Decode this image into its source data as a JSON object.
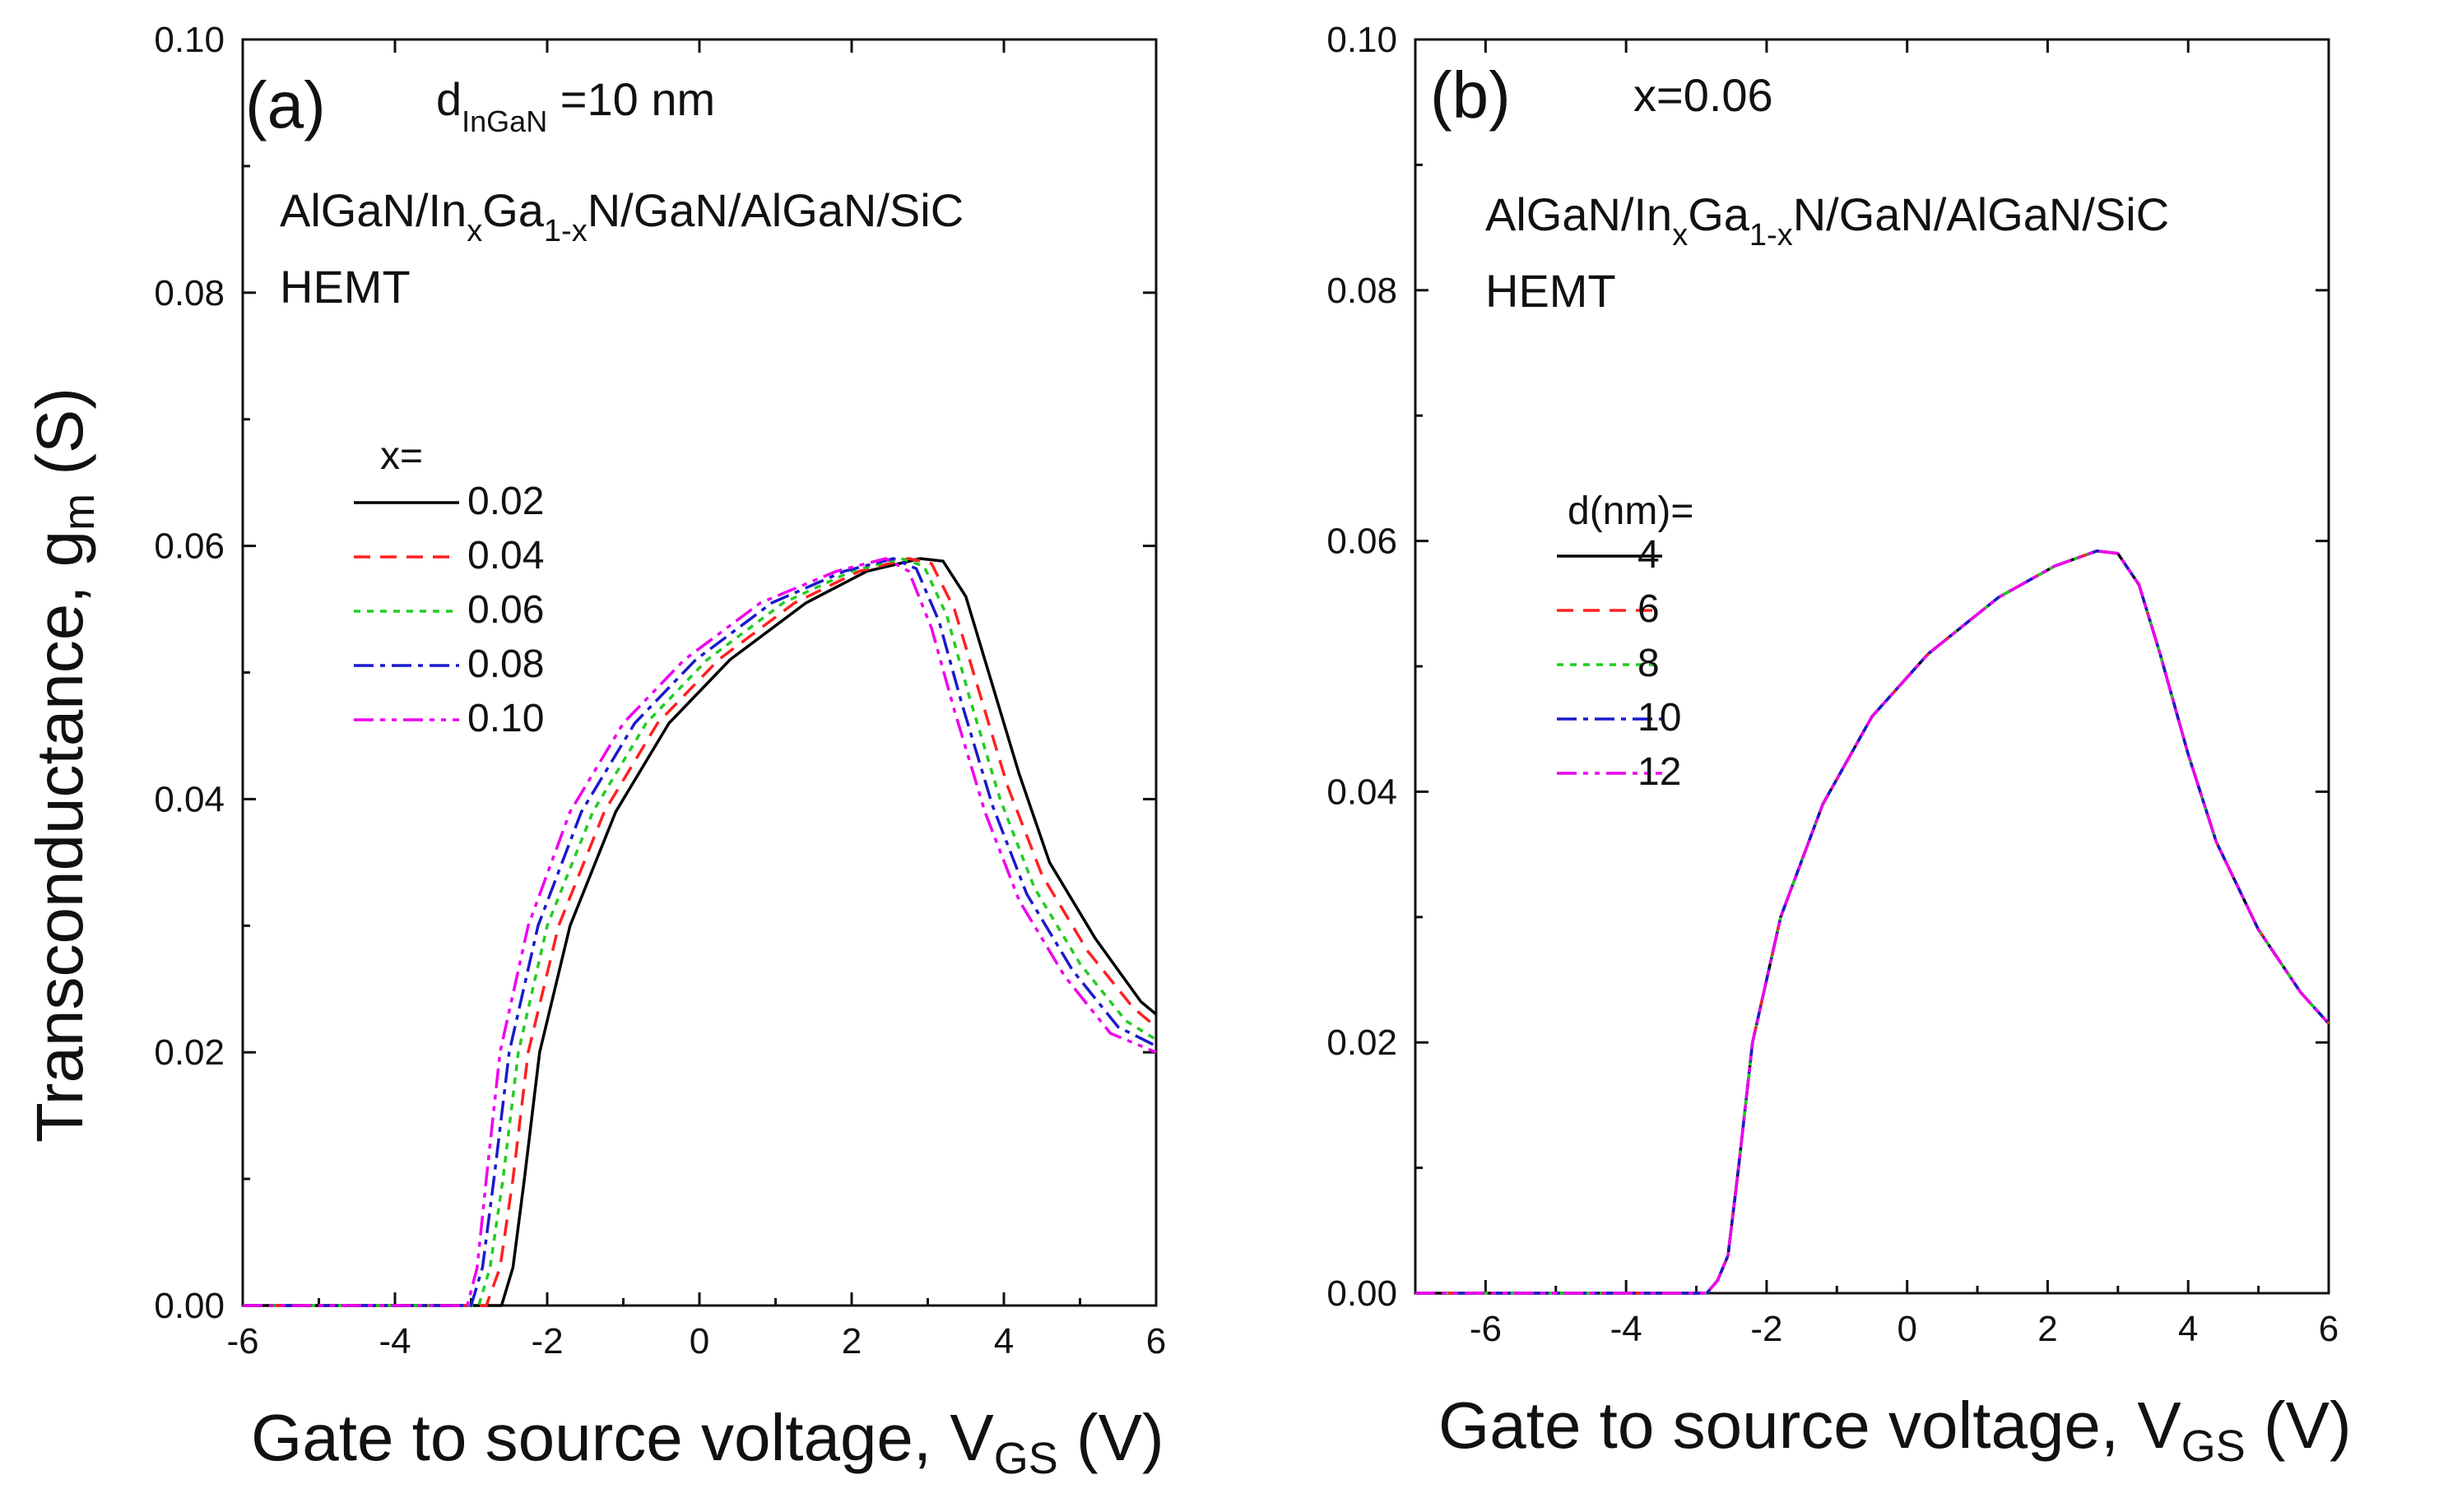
{
  "figure": {
    "ylabel_main": "Transconductance, g",
    "ylabel_sub": "m",
    "ylabel_unit": " (S)",
    "xlabel_main": "Gate to source voltage, V",
    "xlabel_sub": "GS",
    "xlabel_unit": " (V)"
  },
  "chart_data": [
    {
      "panel": "a",
      "type": "line",
      "panel_label": "(a)",
      "title_main": "d",
      "title_sub": "InGaN",
      "title_rest": " =10 nm",
      "structure": {
        "p1": "AlGaN/In",
        "s1": "x",
        "p2": "Ga",
        "s2": "1-x",
        "p3": "N/GaN/AlGaN/SiC"
      },
      "device": "HEMT",
      "legend_title": "x=",
      "xlabel": "Gate to source voltage, VGS (V)",
      "ylabel": "Transconductance, gm (S)",
      "xlim": [
        -6,
        6
      ],
      "ylim": [
        0,
        0.1
      ],
      "xticks": [
        "-6",
        "-4",
        "-2",
        "0",
        "2",
        "4",
        "6"
      ],
      "yticks": [
        "0.00",
        "0.02",
        "0.04",
        "0.06",
        "0.08",
        "0.10"
      ],
      "series": [
        {
          "name": "0.02",
          "color": "#000000",
          "dash": "none",
          "points": [
            [
              -6,
              0
            ],
            [
              -2.6,
              0
            ],
            [
              -2.45,
              0.003
            ],
            [
              -2.3,
              0.01
            ],
            [
              -2.1,
              0.02
            ],
            [
              -1.7,
              0.03
            ],
            [
              -1.1,
              0.039
            ],
            [
              -0.4,
              0.046
            ],
            [
              0.4,
              0.051
            ],
            [
              1.4,
              0.0555
            ],
            [
              2.2,
              0.058
            ],
            [
              2.9,
              0.059
            ],
            [
              3.2,
              0.0588
            ],
            [
              3.5,
              0.056
            ],
            [
              3.8,
              0.05
            ],
            [
              4.2,
              0.042
            ],
            [
              4.6,
              0.035
            ],
            [
              5.2,
              0.029
            ],
            [
              5.8,
              0.024
            ],
            [
              6,
              0.023
            ]
          ]
        },
        {
          "name": "0.04",
          "color": "#ff2020",
          "dash": "20,12",
          "points": [
            [
              -6,
              0
            ],
            [
              -2.8,
              0
            ],
            [
              -2.62,
              0.003
            ],
            [
              -2.45,
              0.01
            ],
            [
              -2.25,
              0.02
            ],
            [
              -1.85,
              0.03
            ],
            [
              -1.25,
              0.039
            ],
            [
              -0.55,
              0.046
            ],
            [
              0.25,
              0.051
            ],
            [
              1.25,
              0.0555
            ],
            [
              2.1,
              0.058
            ],
            [
              2.75,
              0.059
            ],
            [
              3.05,
              0.0586
            ],
            [
              3.35,
              0.055
            ],
            [
              3.65,
              0.049
            ],
            [
              4.05,
              0.041
            ],
            [
              4.5,
              0.034
            ],
            [
              5.1,
              0.028
            ],
            [
              5.7,
              0.0235
            ],
            [
              6,
              0.022
            ]
          ]
        },
        {
          "name": "0.06",
          "color": "#22cc22",
          "dash": "8,8",
          "points": [
            [
              -6,
              0
            ],
            [
              -2.9,
              0
            ],
            [
              -2.75,
              0.003
            ],
            [
              -2.58,
              0.01
            ],
            [
              -2.38,
              0.02
            ],
            [
              -2.0,
              0.03
            ],
            [
              -1.4,
              0.039
            ],
            [
              -0.7,
              0.046
            ],
            [
              0.1,
              0.051
            ],
            [
              1.1,
              0.0555
            ],
            [
              2.0,
              0.058
            ],
            [
              2.65,
              0.059
            ],
            [
              2.95,
              0.0584
            ],
            [
              3.25,
              0.0545
            ],
            [
              3.55,
              0.048
            ],
            [
              3.95,
              0.04
            ],
            [
              4.4,
              0.033
            ],
            [
              5.0,
              0.027
            ],
            [
              5.6,
              0.0225
            ],
            [
              6,
              0.021
            ]
          ]
        },
        {
          "name": "0.08",
          "color": "#1a1acc",
          "dash": "24,8,6,8",
          "points": [
            [
              -6,
              0
            ],
            [
              -3.0,
              0
            ],
            [
              -2.85,
              0.003
            ],
            [
              -2.7,
              0.01
            ],
            [
              -2.5,
              0.02
            ],
            [
              -2.12,
              0.03
            ],
            [
              -1.55,
              0.039
            ],
            [
              -0.85,
              0.046
            ],
            [
              -0.05,
              0.051
            ],
            [
              0.95,
              0.0555
            ],
            [
              1.9,
              0.058
            ],
            [
              2.55,
              0.059
            ],
            [
              2.85,
              0.0582
            ],
            [
              3.15,
              0.054
            ],
            [
              3.45,
              0.0475
            ],
            [
              3.85,
              0.0395
            ],
            [
              4.3,
              0.0325
            ],
            [
              4.9,
              0.0265
            ],
            [
              5.5,
              0.022
            ],
            [
              6,
              0.0205
            ]
          ]
        },
        {
          "name": "0.10",
          "color": "#ee00ee",
          "dash": "24,8,6,8,6,8",
          "points": [
            [
              -6,
              0
            ],
            [
              -3.05,
              0
            ],
            [
              -2.92,
              0.003
            ],
            [
              -2.8,
              0.01
            ],
            [
              -2.62,
              0.02
            ],
            [
              -2.25,
              0.03
            ],
            [
              -1.7,
              0.039
            ],
            [
              -1.0,
              0.046
            ],
            [
              -0.2,
              0.051
            ],
            [
              0.8,
              0.0555
            ],
            [
              1.8,
              0.058
            ],
            [
              2.45,
              0.059
            ],
            [
              2.75,
              0.058
            ],
            [
              3.05,
              0.0535
            ],
            [
              3.35,
              0.047
            ],
            [
              3.75,
              0.039
            ],
            [
              4.2,
              0.032
            ],
            [
              4.8,
              0.026
            ],
            [
              5.4,
              0.0215
            ],
            [
              6,
              0.02
            ]
          ]
        }
      ]
    },
    {
      "panel": "b",
      "type": "line",
      "panel_label": "(b)",
      "title_text": "x=0.06",
      "structure": {
        "p1": "AlGaN/In",
        "s1": "x",
        "p2": "Ga",
        "s2": "1-x",
        "p3": "N/GaN/AlGaN/SiC"
      },
      "device": "HEMT",
      "legend_title": "d(nm)=",
      "xlabel": "Gate to source voltage, VGS (V)",
      "xlim": [
        -7,
        6
      ],
      "ylim": [
        0,
        0.1
      ],
      "xticks": [
        "-6",
        "-4",
        "-2",
        "0",
        "2",
        "4",
        "6"
      ],
      "yticks": [
        "0.00",
        "0.02",
        "0.04",
        "0.06",
        "0.08",
        "0.10"
      ],
      "series": [
        {
          "name": "4",
          "color": "#000000",
          "dash": "none"
        },
        {
          "name": "6",
          "color": "#ff2020",
          "dash": "20,12"
        },
        {
          "name": "8",
          "color": "#22cc22",
          "dash": "8,8"
        },
        {
          "name": "10",
          "color": "#1a1acc",
          "dash": "24,8,6,8"
        },
        {
          "name": "12",
          "color": "#ee00ee",
          "dash": "24,8,6,8,6,8"
        }
      ],
      "shared_curve": [
        [
          -7,
          0
        ],
        [
          -2.85,
          0
        ],
        [
          -2.7,
          0.001
        ],
        [
          -2.55,
          0.003
        ],
        [
          -2.4,
          0.01
        ],
        [
          -2.2,
          0.02
        ],
        [
          -1.8,
          0.03
        ],
        [
          -1.2,
          0.039
        ],
        [
          -0.5,
          0.046
        ],
        [
          0.3,
          0.051
        ],
        [
          1.3,
          0.0555
        ],
        [
          2.1,
          0.058
        ],
        [
          2.7,
          0.0592
        ],
        [
          3.0,
          0.059
        ],
        [
          3.3,
          0.0565
        ],
        [
          3.6,
          0.051
        ],
        [
          4.0,
          0.043
        ],
        [
          4.4,
          0.036
        ],
        [
          5.0,
          0.029
        ],
        [
          5.6,
          0.024
        ],
        [
          6,
          0.0215
        ]
      ]
    }
  ]
}
